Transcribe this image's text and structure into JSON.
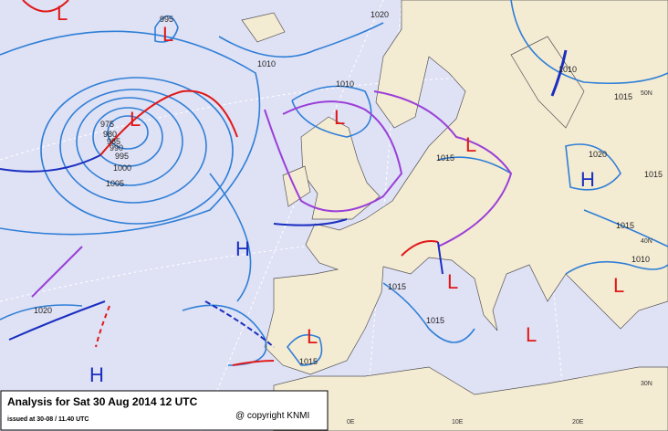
{
  "caption": {
    "title": "Analysis for Sat 30 Aug 2014 12 UTC",
    "issued": "issued at 30-08 / 11.40 UTC",
    "copyright": "@ copyright KNMI"
  },
  "centers": [
    {
      "label": "L",
      "color": "#e01818"
    },
    {
      "label": "L",
      "color": "#e01818"
    },
    {
      "label": "L",
      "color": "#e01818"
    },
    {
      "label": "L",
      "color": "#e01818"
    },
    {
      "label": "L",
      "color": "#e01818"
    },
    {
      "label": "H",
      "color": "#1a2fc0"
    },
    {
      "label": "H",
      "color": "#1a2fc0"
    },
    {
      "label": "L",
      "color": "#e01818"
    },
    {
      "label": "L",
      "color": "#e01818"
    },
    {
      "label": "L",
      "color": "#e01818"
    },
    {
      "label": "L",
      "color": "#e01818"
    },
    {
      "label": "H",
      "color": "#1a2fc0"
    }
  ],
  "isobar_labels": [
    "995",
    "1020",
    "1010",
    "1010",
    "1010",
    "1015",
    "975",
    "980",
    "985",
    "990",
    "995",
    "1000",
    "1005",
    "1020",
    "1015",
    "1015",
    "1015",
    "1010",
    "1015",
    "1015",
    "1020",
    "1015"
  ],
  "graticule_labels": [
    "50N",
    "40N",
    "30N",
    "0E",
    "10E",
    "20E"
  ]
}
